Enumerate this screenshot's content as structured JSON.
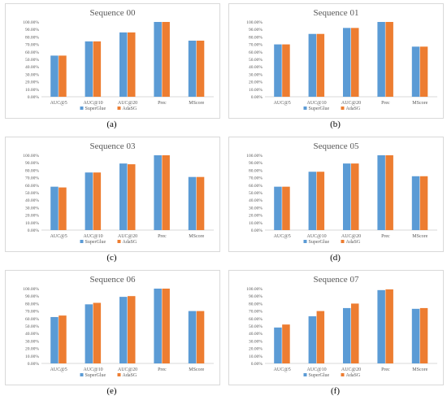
{
  "figure": {
    "legend": [
      "SuperGlue",
      "AdaSG"
    ],
    "colors": {
      "superglue": "#5b9bd5",
      "adasg": "#ed7d31"
    }
  },
  "chart_data": [
    {
      "type": "bar",
      "title": "Sequence 00",
      "caption": "(a)",
      "categories": [
        "AUC@5",
        "AUC@10",
        "AUC@20",
        "Prec",
        "MScore"
      ],
      "yticks": [
        "0.00%",
        "10.00%",
        "20.00%",
        "30.00%",
        "40.00%",
        "50.00%",
        "60.00%",
        "70.00%",
        "80.00%",
        "90.00%",
        "100.00%"
      ],
      "ylim": [
        0,
        100
      ],
      "legend_position": "bottom",
      "grid": false,
      "series": [
        {
          "name": "SuperGlue",
          "values": [
            55,
            74,
            86,
            100,
            75
          ]
        },
        {
          "name": "AdaSG",
          "values": [
            55,
            74,
            86,
            100,
            75
          ]
        }
      ]
    },
    {
      "type": "bar",
      "title": "Sequence 01",
      "caption": "(b)",
      "categories": [
        "AUC@5",
        "AUC@10",
        "AUC@20",
        "Prec",
        "MScore"
      ],
      "yticks": [
        "0.00%",
        "10.00%",
        "20.00%",
        "30.00%",
        "40.00%",
        "50.00%",
        "60.00%",
        "70.00%",
        "80.00%",
        "90.00%",
        "100.00%"
      ],
      "ylim": [
        0,
        100
      ],
      "legend_position": "bottom",
      "grid": false,
      "series": [
        {
          "name": "SuperGlue",
          "values": [
            70,
            84,
            92,
            100,
            67
          ]
        },
        {
          "name": "AdaSG",
          "values": [
            70,
            84,
            92,
            100,
            67
          ]
        }
      ]
    },
    {
      "type": "bar",
      "title": "Sequence 03",
      "caption": "(c)",
      "categories": [
        "AUC@5",
        "AUC@10",
        "AUC@20",
        "Prec",
        "MScore"
      ],
      "yticks": [
        "0.00%",
        "10.00%",
        "20.00%",
        "30.00%",
        "40.00%",
        "50.00%",
        "60.00%",
        "70.00%",
        "80.00%",
        "90.00%",
        "100.00%"
      ],
      "ylim": [
        0,
        100
      ],
      "legend_position": "bottom",
      "grid": false,
      "series": [
        {
          "name": "SuperGlue",
          "values": [
            58,
            77,
            89,
            100,
            71
          ]
        },
        {
          "name": "AdaSG",
          "values": [
            57,
            77,
            88,
            100,
            71
          ]
        }
      ]
    },
    {
      "type": "bar",
      "title": "Sequence 05",
      "caption": "(d)",
      "categories": [
        "AUC@5",
        "AUC@10",
        "AUC@20",
        "Prec",
        "MScore"
      ],
      "yticks": [
        "0.00%",
        "10.00%",
        "20.00%",
        "30.00%",
        "40.00%",
        "50.00%",
        "60.00%",
        "70.00%",
        "80.00%",
        "90.00%",
        "100.00%"
      ],
      "ylim": [
        0,
        100
      ],
      "legend_position": "bottom",
      "grid": false,
      "series": [
        {
          "name": "SuperGlue",
          "values": [
            58,
            78,
            89,
            100,
            72
          ]
        },
        {
          "name": "AdaSG",
          "values": [
            58,
            78,
            89,
            100,
            72
          ]
        }
      ]
    },
    {
      "type": "bar",
      "title": "Sequence 06",
      "caption": "(e)",
      "categories": [
        "AUC@5",
        "AUC@10",
        "AUC@20",
        "Prec",
        "MScore"
      ],
      "yticks": [
        "0.00%",
        "10.00%",
        "20.00%",
        "30.00%",
        "40.00%",
        "50.00%",
        "60.00%",
        "70.00%",
        "80.00%",
        "90.00%",
        "100.00%"
      ],
      "ylim": [
        0,
        100
      ],
      "legend_position": "bottom",
      "grid": false,
      "series": [
        {
          "name": "SuperGlue",
          "values": [
            62,
            79,
            89,
            100,
            70
          ]
        },
        {
          "name": "AdaSG",
          "values": [
            64,
            81,
            90,
            100,
            70
          ]
        }
      ]
    },
    {
      "type": "bar",
      "title": "Sequence 07",
      "caption": "(f)",
      "categories": [
        "AUC@5",
        "AUC@10",
        "AUC@20",
        "Prec",
        "MScore"
      ],
      "yticks": [
        "0.00%",
        "10.00%",
        "20.00%",
        "30.00%",
        "40.00%",
        "50.00%",
        "60.00%",
        "70.00%",
        "80.00%",
        "90.00%",
        "100.00%"
      ],
      "ylim": [
        0,
        100
      ],
      "legend_position": "bottom",
      "grid": false,
      "series": [
        {
          "name": "SuperGlue",
          "values": [
            48,
            63,
            74,
            98,
            73
          ]
        },
        {
          "name": "AdaSG",
          "values": [
            52,
            70,
            80,
            99,
            74
          ]
        }
      ]
    }
  ]
}
